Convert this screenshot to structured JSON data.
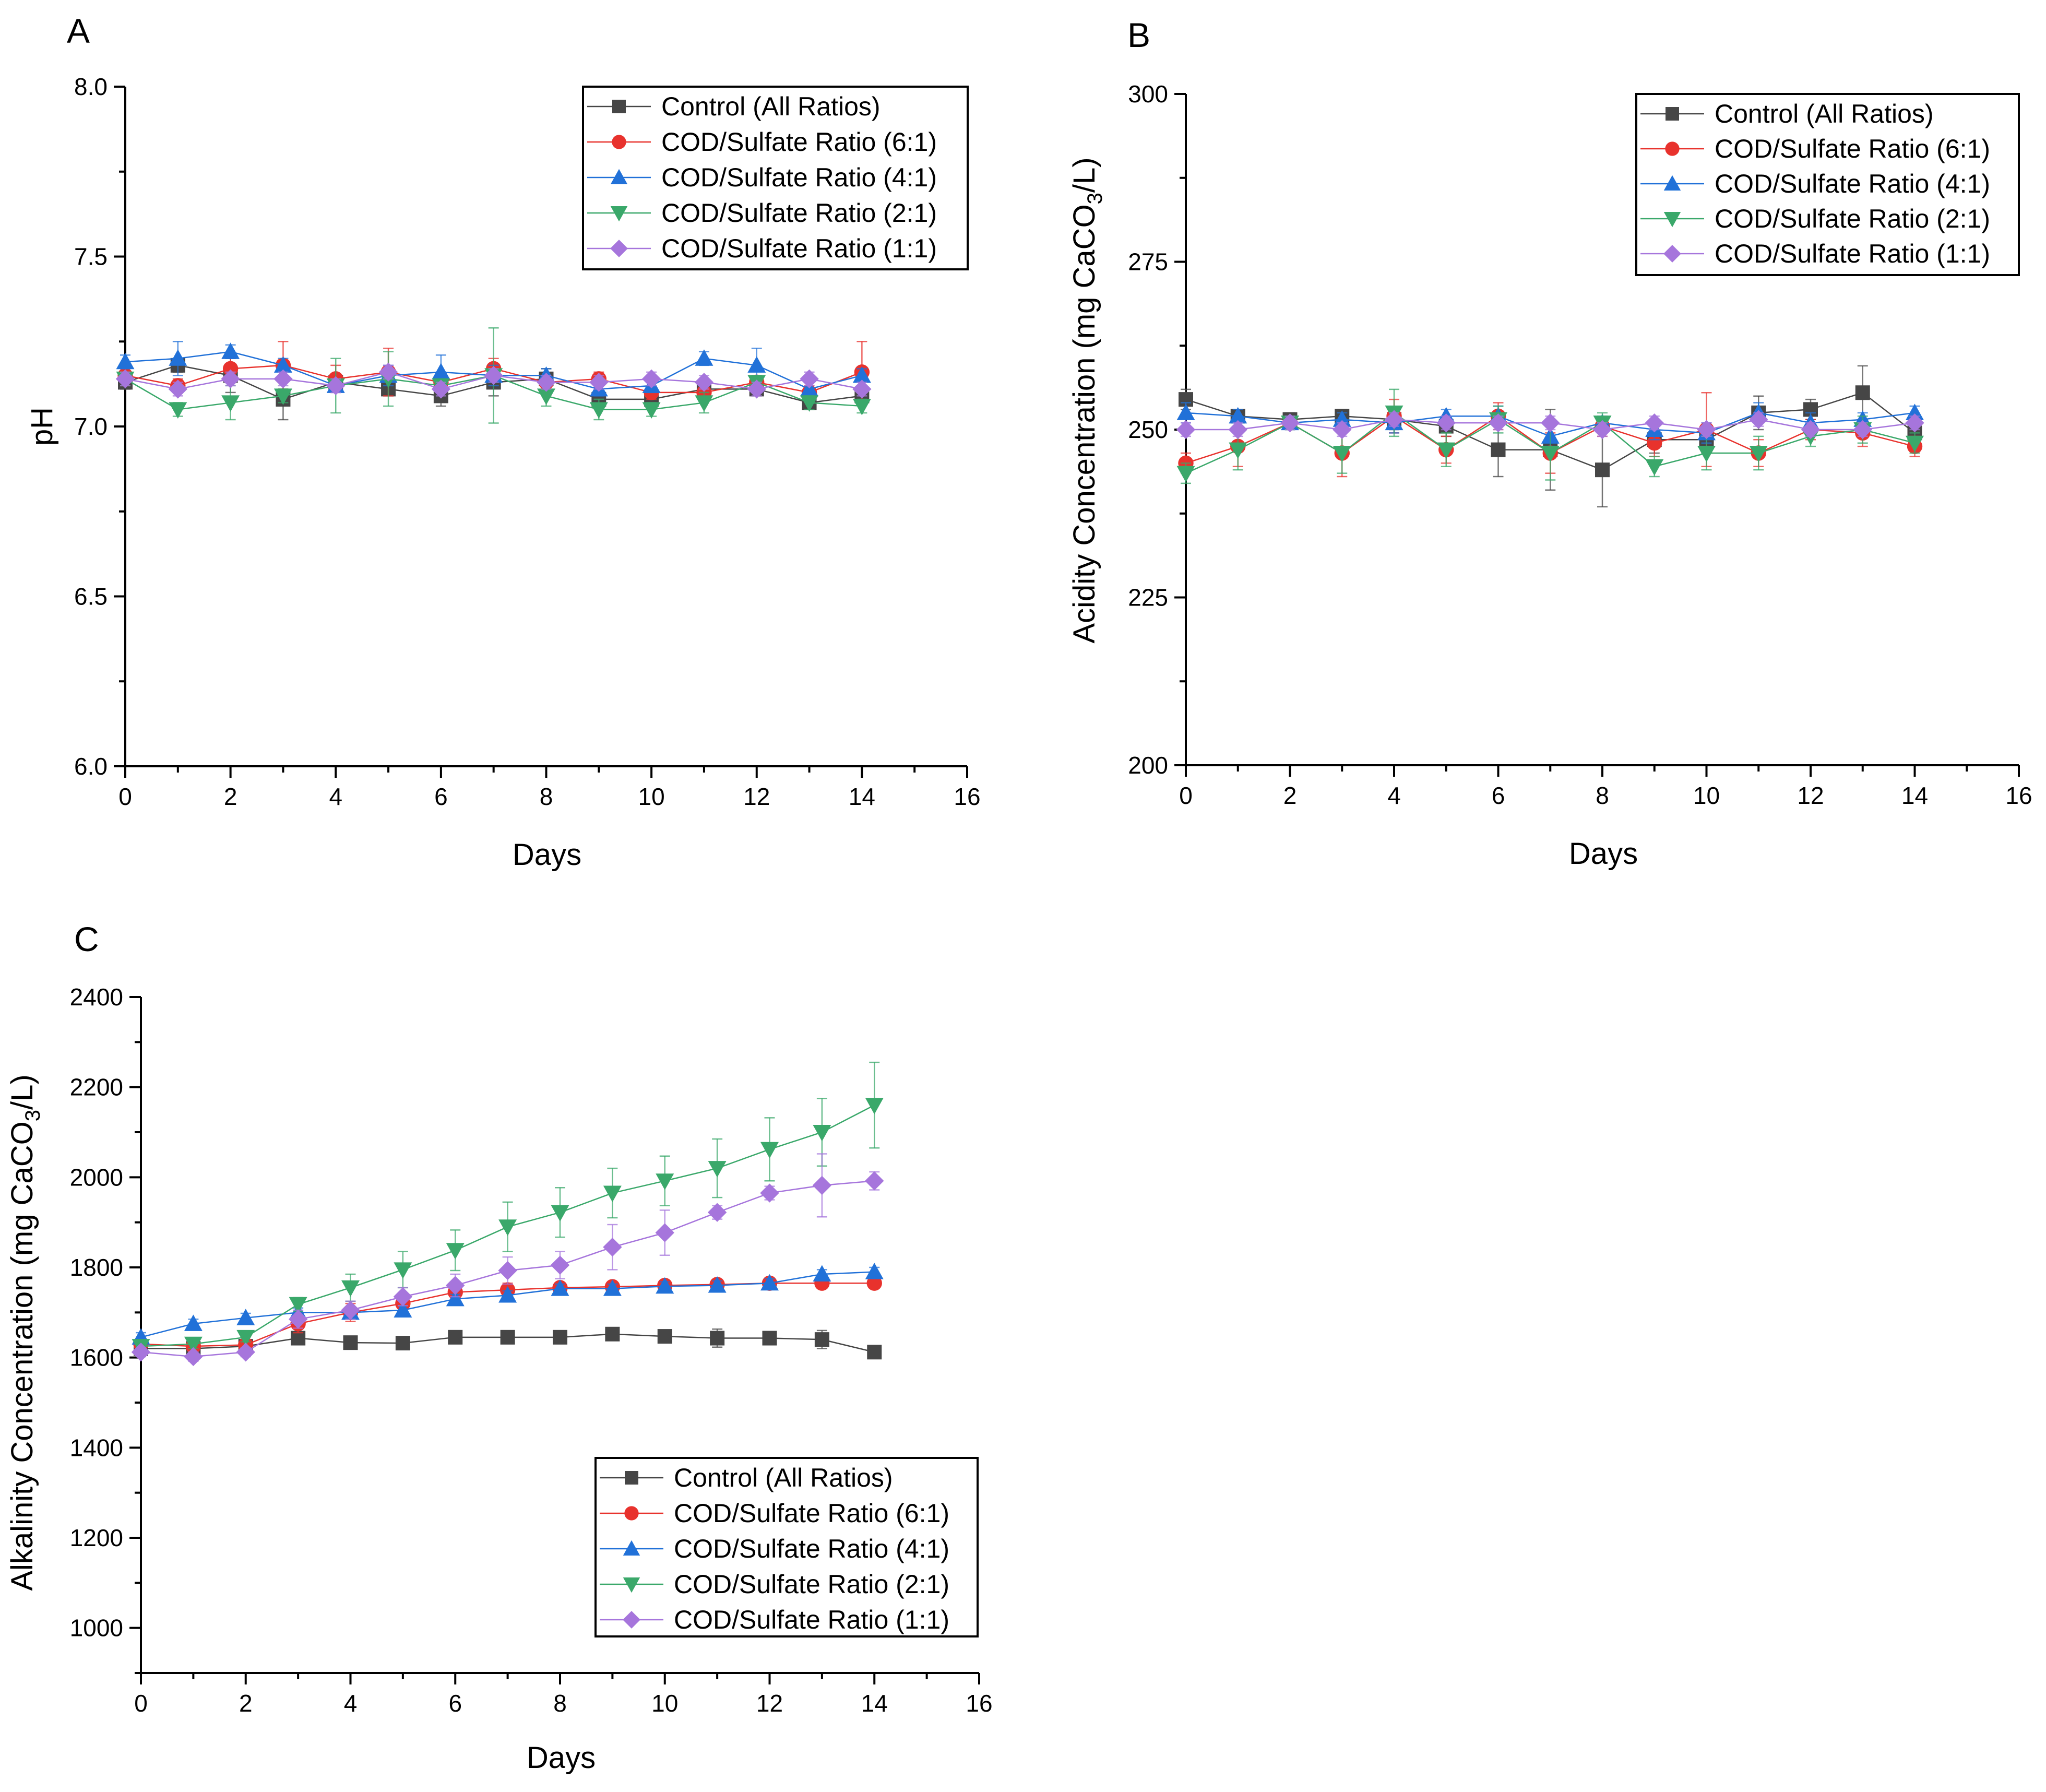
{
  "figure": {
    "panel_labels": [
      "A",
      "B",
      "C"
    ]
  },
  "series_styles": [
    {
      "name": "Control (All Ratios)",
      "color": "#464646",
      "marker": "square"
    },
    {
      "name": "COD/Sulfate Ratio (6:1)",
      "color": "#e8322d",
      "marker": "circle"
    },
    {
      "name": "COD/Sulfate Ratio (4:1)",
      "color": "#2171d8",
      "marker": "triangle-up"
    },
    {
      "name": "COD/Sulfate Ratio (2:1)",
      "color": "#3aa86a",
      "marker": "triangle-down"
    },
    {
      "name": "COD/Sulfate Ratio (1:1)",
      "color": "#a675dc",
      "marker": "diamond"
    }
  ],
  "chart_data": [
    {
      "panel": "A",
      "type": "line",
      "title": "",
      "xlabel": "Days",
      "ylabel": "pH",
      "xlim": [
        0,
        16
      ],
      "ylim": [
        6.0,
        8.0
      ],
      "xticks": [
        "0",
        "2",
        "4",
        "6",
        "8",
        "10",
        "12",
        "14",
        "16"
      ],
      "yticks": [
        "6.0",
        "6.5",
        "7.0",
        "7.5",
        "8.0"
      ],
      "legend_position": "top-right",
      "x": [
        0,
        1,
        2,
        3,
        4,
        5,
        6,
        7,
        8,
        9,
        10,
        11,
        12,
        13,
        14
      ],
      "series": [
        {
          "name": "Control (All Ratios)",
          "values": [
            7.13,
            7.18,
            7.15,
            7.08,
            7.13,
            7.11,
            7.09,
            7.13,
            7.14,
            7.08,
            7.08,
            7.11,
            7.11,
            7.07,
            7.09
          ],
          "errors": [
            0.02,
            0.02,
            0.05,
            0.06,
            0.02,
            0.02,
            0.03,
            0.04,
            0.03,
            0.02,
            0.02,
            0.02,
            0.02,
            0.02,
            0.02
          ]
        },
        {
          "name": "COD/Sulfate Ratio (6:1)",
          "values": [
            7.15,
            7.12,
            7.17,
            7.18,
            7.14,
            7.16,
            7.13,
            7.17,
            7.13,
            7.14,
            7.1,
            7.1,
            7.13,
            7.1,
            7.16
          ],
          "errors": [
            0.03,
            0.02,
            0.03,
            0.07,
            0.04,
            0.07,
            0.02,
            0.03,
            0.02,
            0.02,
            0.02,
            0.02,
            0.02,
            0.02,
            0.09
          ]
        },
        {
          "name": "COD/Sulfate Ratio (4:1)",
          "values": [
            7.19,
            7.2,
            7.22,
            7.18,
            7.12,
            7.15,
            7.16,
            7.15,
            7.15,
            7.11,
            7.12,
            7.2,
            7.18,
            7.11,
            7.15
          ],
          "errors": [
            0.02,
            0.05,
            0.02,
            0.02,
            0.02,
            0.03,
            0.05,
            0.03,
            0.02,
            0.02,
            0.02,
            0.02,
            0.05,
            0.02,
            0.02
          ]
        },
        {
          "name": "COD/Sulfate Ratio (2:1)",
          "values": [
            7.14,
            7.05,
            7.07,
            7.09,
            7.12,
            7.14,
            7.12,
            7.15,
            7.09,
            7.05,
            7.05,
            7.07,
            7.13,
            7.07,
            7.06
          ],
          "errors": [
            0.02,
            0.02,
            0.05,
            0.02,
            0.08,
            0.08,
            0.02,
            0.14,
            0.03,
            0.03,
            0.02,
            0.03,
            0.02,
            0.02,
            0.02
          ]
        },
        {
          "name": "COD/Sulfate Ratio (1:1)",
          "values": [
            7.14,
            7.11,
            7.14,
            7.14,
            7.12,
            7.16,
            7.11,
            7.15,
            7.13,
            7.13,
            7.14,
            7.13,
            7.11,
            7.14,
            7.11
          ],
          "errors": [
            0.02,
            0.02,
            0.02,
            0.02,
            0.02,
            0.02,
            0.02,
            0.02,
            0.02,
            0.02,
            0.02,
            0.02,
            0.02,
            0.02,
            0.02
          ]
        }
      ]
    },
    {
      "panel": "B",
      "type": "line",
      "title": "",
      "xlabel": "Days",
      "ylabel": "Acidity Concentration (mg CaCO3/L)",
      "ylabel_parts": {
        "before": "Acidity Concentration (mg CaCO",
        "sub": "3",
        "after": "/L)"
      },
      "xlim": [
        0,
        16
      ],
      "ylim": [
        200,
        300
      ],
      "xticks": [
        "0",
        "2",
        "4",
        "6",
        "8",
        "10",
        "12",
        "14",
        "16"
      ],
      "yticks": [
        "200",
        "225",
        "250",
        "275",
        "300"
      ],
      "legend_position": "top-right",
      "x": [
        0,
        1,
        2,
        3,
        4,
        5,
        6,
        7,
        8,
        9,
        10,
        11,
        12,
        13,
        14
      ],
      "series": [
        {
          "name": "Control (All Ratios)",
          "values": [
            254.5,
            252.0,
            251.5,
            252.0,
            251.5,
            250.5,
            247.0,
            247.0,
            244.0,
            248.5,
            248.5,
            252.5,
            253.0,
            255.5,
            249.5
          ],
          "errors": [
            1.5,
            1.0,
            1.0,
            1.0,
            1.5,
            1.5,
            4.0,
            6.0,
            5.5,
            2.0,
            2.0,
            2.5,
            1.5,
            4.0,
            1.5
          ]
        },
        {
          "name": "COD/Sulfate Ratio (6:1)",
          "values": [
            245.0,
            247.5,
            251.0,
            246.5,
            252.0,
            247.0,
            252.0,
            246.5,
            250.5,
            248.0,
            250.0,
            246.5,
            250.0,
            249.5,
            247.5
          ],
          "errors": [
            1.5,
            3.0,
            1.0,
            3.5,
            2.5,
            2.0,
            2.0,
            3.0,
            1.5,
            2.0,
            5.5,
            2.0,
            1.5,
            2.0,
            1.5
          ]
        },
        {
          "name": "COD/Sulfate Ratio (4:1)",
          "values": [
            252.5,
            252.0,
            251.0,
            251.5,
            251.0,
            252.0,
            252.0,
            249.0,
            251.0,
            250.0,
            249.5,
            252.5,
            251.0,
            251.5,
            252.5
          ],
          "errors": [
            1.5,
            1.0,
            1.0,
            1.0,
            1.5,
            1.0,
            1.5,
            1.5,
            1.0,
            1.5,
            1.5,
            1.5,
            1.5,
            1.0,
            1.0
          ]
        },
        {
          "name": "COD/Sulfate Ratio (2:1)",
          "values": [
            243.5,
            247.0,
            251.0,
            246.5,
            252.5,
            247.0,
            251.5,
            246.5,
            251.0,
            244.5,
            246.5,
            246.5,
            249.0,
            250.0,
            248.0
          ],
          "errors": [
            1.5,
            3.0,
            1.0,
            3.0,
            3.5,
            2.5,
            2.0,
            4.0,
            1.5,
            1.5,
            2.5,
            2.5,
            1.5,
            2.0,
            1.5
          ]
        },
        {
          "name": "COD/Sulfate Ratio (1:1)",
          "values": [
            250.0,
            250.0,
            251.0,
            250.0,
            251.5,
            251.0,
            251.0,
            251.0,
            250.0,
            251.0,
            250.0,
            251.5,
            250.0,
            250.0,
            251.0
          ],
          "errors": [
            1.0,
            1.0,
            1.0,
            1.0,
            1.0,
            1.0,
            1.0,
            1.0,
            1.0,
            1.0,
            1.0,
            1.0,
            1.0,
            1.0,
            1.0
          ]
        }
      ]
    },
    {
      "panel": "C",
      "type": "line",
      "title": "",
      "xlabel": "Days",
      "ylabel": "Alkalinity Concentration (mg CaCO3/L)",
      "ylabel_parts": {
        "before": "Alkalinity Concentration (mg CaCO",
        "sub": "3",
        "after": "/L)"
      },
      "xlim": [
        0,
        16
      ],
      "ylim": [
        900,
        2400
      ],
      "xticks": [
        "0",
        "2",
        "4",
        "6",
        "8",
        "10",
        "12",
        "14",
        "16"
      ],
      "yticks": [
        "1000",
        "1200",
        "1400",
        "1600",
        "1800",
        "2000",
        "2200",
        "2400"
      ],
      "legend_position": "bottom-right",
      "x": [
        0,
        1,
        2,
        3,
        4,
        5,
        6,
        7,
        8,
        9,
        10,
        11,
        12,
        13,
        14
      ],
      "series": [
        {
          "name": "Control (All Ratios)",
          "values": [
            1620,
            1620,
            1625,
            1643,
            1633,
            1632,
            1645,
            1645,
            1645,
            1652,
            1647,
            1643,
            1643,
            1640,
            1612
          ],
          "errors": [
            10,
            10,
            10,
            10,
            10,
            10,
            10,
            10,
            10,
            10,
            10,
            20,
            10,
            20,
            10
          ]
        },
        {
          "name": "COD/Sulfate Ratio (6:1)",
          "values": [
            1630,
            1625,
            1628,
            1675,
            1700,
            1720,
            1745,
            1750,
            1755,
            1757,
            1760,
            1762,
            1765,
            1765,
            1765
          ],
          "errors": [
            10,
            10,
            10,
            20,
            20,
            20,
            15,
            15,
            10,
            10,
            10,
            10,
            10,
            10,
            10
          ]
        },
        {
          "name": "COD/Sulfate Ratio (4:1)",
          "values": [
            1645,
            1675,
            1688,
            1700,
            1700,
            1705,
            1730,
            1738,
            1753,
            1753,
            1758,
            1760,
            1765,
            1785,
            1790
          ],
          "errors": [
            10,
            10,
            10,
            10,
            10,
            10,
            10,
            10,
            10,
            10,
            10,
            10,
            10,
            10,
            10
          ]
        },
        {
          "name": "COD/Sulfate Ratio (2:1)",
          "values": [
            1625,
            1630,
            1645,
            1718,
            1755,
            1795,
            1838,
            1890,
            1922,
            1965,
            1992,
            2020,
            2062,
            2100,
            2160
          ],
          "errors": [
            10,
            10,
            10,
            15,
            30,
            40,
            45,
            55,
            55,
            55,
            55,
            65,
            70,
            75,
            95
          ]
        },
        {
          "name": "COD/Sulfate Ratio (1:1)",
          "values": [
            1612,
            1602,
            1612,
            1685,
            1705,
            1735,
            1760,
            1793,
            1805,
            1845,
            1877,
            1922,
            1965,
            1982,
            1992
          ],
          "errors": [
            10,
            10,
            10,
            20,
            20,
            20,
            25,
            30,
            30,
            50,
            50,
            15,
            15,
            70,
            20
          ]
        }
      ]
    }
  ]
}
